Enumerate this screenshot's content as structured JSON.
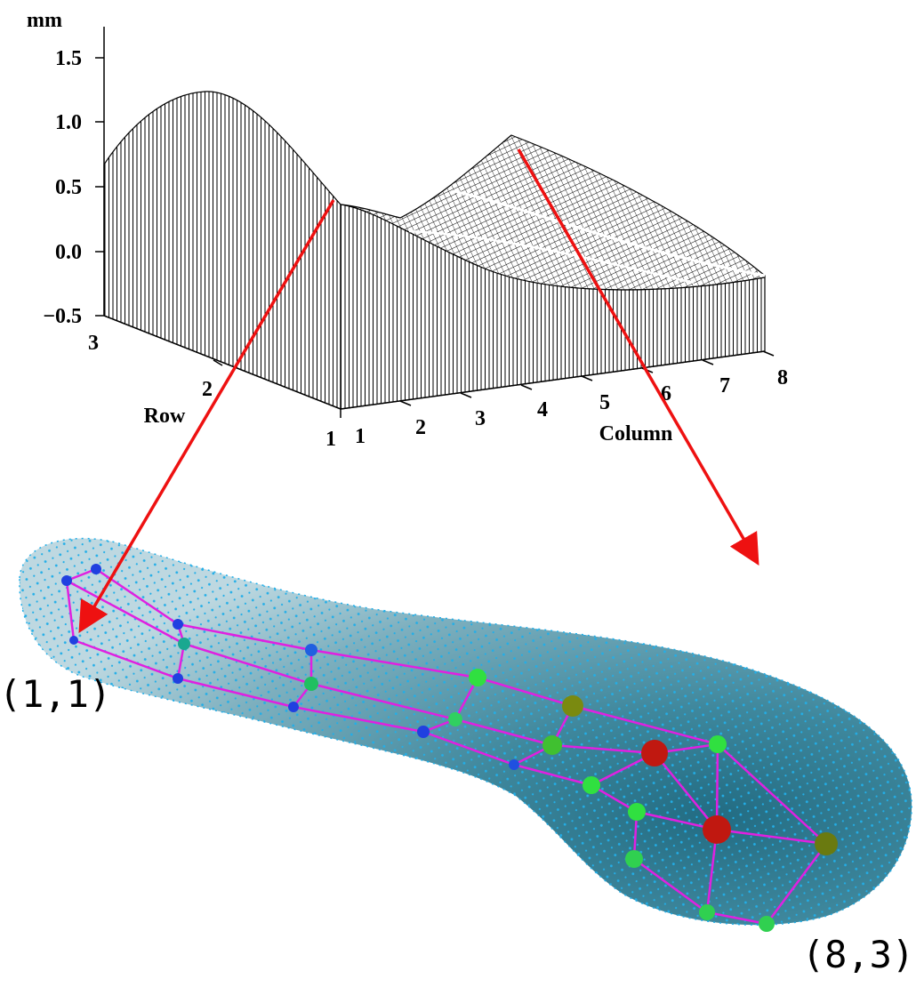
{
  "plot": {
    "z_unit": "mm",
    "z_ticks": [
      "1.5",
      "1.0",
      "0.5",
      "0.0",
      "−0.5"
    ],
    "row_label": "Row",
    "row_ticks": [
      "3",
      "2",
      "1"
    ],
    "column_label": "Column",
    "column_ticks": [
      "1",
      "2",
      "3",
      "4",
      "5",
      "6",
      "7",
      "8"
    ]
  },
  "mesh": {
    "labels": [
      "(1,1)",
      "(8,3)"
    ]
  }
}
